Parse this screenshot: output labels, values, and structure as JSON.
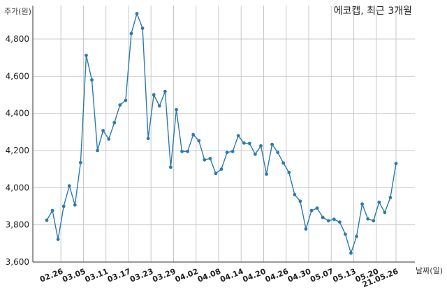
{
  "chart_data": {
    "type": "line",
    "title": "에코캡, 최근 3개월",
    "ylabel": "주가(원)",
    "xlabel": "날짜(일)",
    "ylim": [
      3600,
      4980
    ],
    "y_ticks": [
      3600,
      3800,
      4000,
      4200,
      4400,
      4600,
      4800
    ],
    "y_tick_labels": [
      "3,600",
      "3,800",
      "4,000",
      "4,200",
      "4,400",
      "4,600",
      "4,800"
    ],
    "x_tick_labels": [
      {
        "index": 2.5,
        "label": "02.26"
      },
      {
        "index": 6.5,
        "label": "03.05"
      },
      {
        "index": 10.5,
        "label": "03.11"
      },
      {
        "index": 14.5,
        "label": "03.17"
      },
      {
        "index": 18.5,
        "label": "03.23"
      },
      {
        "index": 22.5,
        "label": "03.29"
      },
      {
        "index": 26.5,
        "label": "04.02"
      },
      {
        "index": 30.5,
        "label": "04.08"
      },
      {
        "index": 34.5,
        "label": "04.14"
      },
      {
        "index": 38.5,
        "label": "04.20"
      },
      {
        "index": 42.5,
        "label": "04.26"
      },
      {
        "index": 46.5,
        "label": "04.30"
      },
      {
        "index": 50.5,
        "label": "05.07"
      },
      {
        "index": 54.5,
        "label": "05.13"
      },
      {
        "index": 58.5,
        "label": "05.20"
      },
      {
        "index": 62,
        "label": "21.05.26"
      }
    ],
    "grid": true,
    "color": "#2a7ab0",
    "series": [
      {
        "values": [
          3825,
          3877,
          3722,
          3900,
          4010,
          3907,
          4135,
          4712,
          4580,
          4200,
          4307,
          4262,
          4350,
          4445,
          4470,
          4830,
          4937,
          4858,
          4265,
          4500,
          4440,
          4518,
          4110,
          4420,
          4195,
          4195,
          4285,
          4253,
          4150,
          4157,
          4077,
          4100,
          4190,
          4195,
          4280,
          4240,
          4238,
          4180,
          4225,
          4073,
          4233,
          4190,
          4133,
          4082,
          3963,
          3927,
          3778,
          3877,
          3890,
          3840,
          3822,
          3830,
          3815,
          3750,
          3648,
          3738,
          3912,
          3832,
          3822,
          3922,
          3867,
          3947,
          4130
        ]
      }
    ]
  }
}
